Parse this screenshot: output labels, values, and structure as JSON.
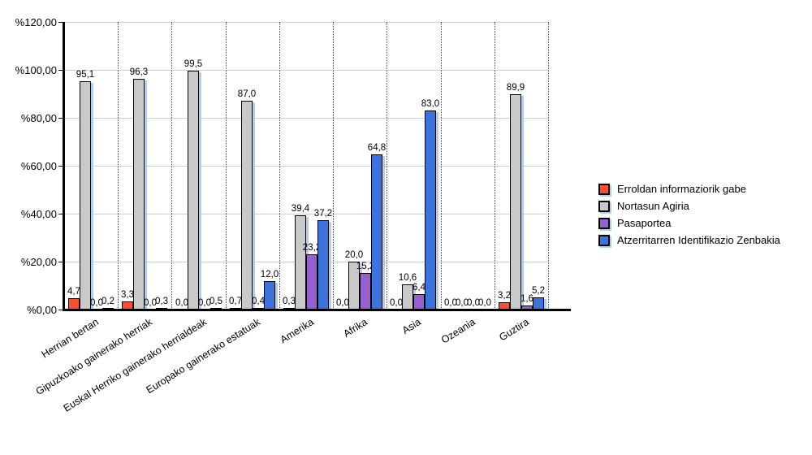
{
  "chart_data": {
    "type": "bar",
    "title": "",
    "xlabel": "",
    "ylabel": "",
    "categories": [
      "Herrian bertan",
      "Gipuzkoako gainerako herriak",
      "Euskal Herriko gainerako herrialdeak",
      "Europako gainerako estatuak",
      "Amerika",
      "Afrika",
      "Asia",
      "Ozeania",
      "Guztira"
    ],
    "series": [
      {
        "name": "Erroldan informaziorik gabe",
        "color": "#FA5032",
        "values": [
          4.7,
          3.3,
          0.0,
          0.7,
          0.3,
          0.0,
          0.0,
          0.0,
          3.2
        ]
      },
      {
        "name": "Nortasun Agiria",
        "color": "#C9C9C9",
        "values": [
          95.1,
          96.3,
          99.5,
          87.0,
          39.4,
          20.0,
          10.6,
          0.0,
          89.9
        ]
      },
      {
        "name": "Pasaportea",
        "color": "#9661CE",
        "values": [
          0.0,
          0.0,
          0.0,
          0.4,
          23.2,
          15.2,
          6.4,
          0.0,
          1.6
        ]
      },
      {
        "name": "Atzerritarren Identifikazio Zenbakia",
        "color": "#3D73DB",
        "values": [
          0.2,
          0.3,
          0.5,
          12.0,
          37.2,
          64.8,
          83.0,
          0.0,
          5.2
        ]
      }
    ],
    "ylim": [
      0,
      120
    ],
    "y_ticks": [
      0,
      20,
      40,
      60,
      80,
      100,
      120
    ],
    "y_tick_labels": [
      "%0,00",
      "%20,00",
      "%40,00",
      "%60,00",
      "%80,00",
      "%100,00",
      "%120,00"
    ],
    "grid": true,
    "legend_position": "right",
    "bar_outline_color": "#000000",
    "bar_shadow_color": "#AAC8EB",
    "value_label_format": "comma-decimal-1"
  }
}
